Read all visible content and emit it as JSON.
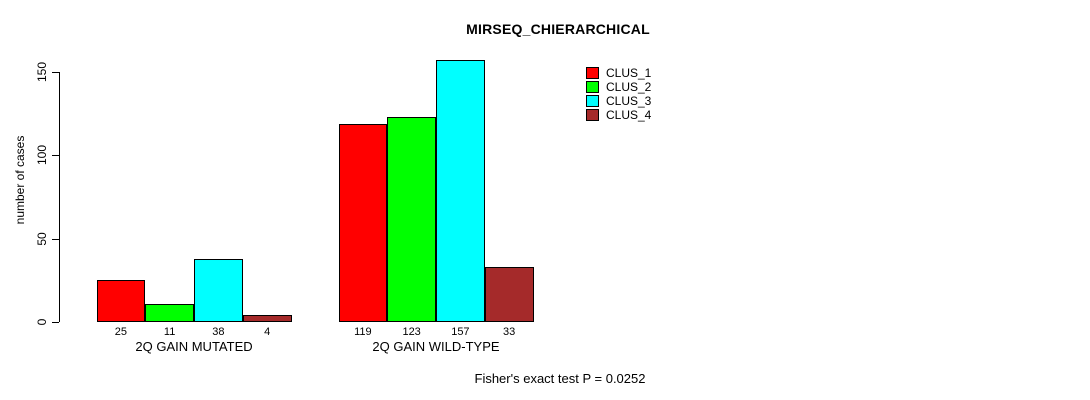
{
  "chart_data": {
    "type": "bar",
    "title": "MIRSEQ_CHIERARCHICAL",
    "ylabel": "number of cases",
    "xlabel": "",
    "categories": [
      "2Q GAIN MUTATED",
      "2Q GAIN WILD-TYPE"
    ],
    "series": [
      {
        "name": "CLUS_1",
        "color": "#FF0000",
        "values": [
          25,
          119
        ]
      },
      {
        "name": "CLUS_2",
        "color": "#00FF00",
        "values": [
          11,
          123
        ]
      },
      {
        "name": "CLUS_3",
        "color": "#00FFFF",
        "values": [
          38,
          157
        ]
      },
      {
        "name": "CLUS_4",
        "color": "#A52A2A",
        "values": [
          4,
          33
        ]
      }
    ],
    "yticks": [
      0,
      50,
      100,
      150
    ],
    "ylim": [
      0,
      150
    ],
    "grid": false,
    "legend_position": "top-right",
    "bar_value_labels_shown": true,
    "annotation": "Fisher's exact test P = 0.0252"
  },
  "colors": {
    "background": "#FFFFFF",
    "axis": "#000000",
    "text": "#000000",
    "bar_border": "#000000"
  }
}
